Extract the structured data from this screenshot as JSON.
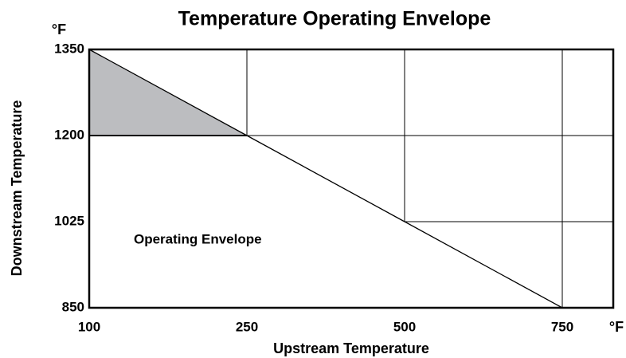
{
  "chart_data": {
    "type": "line",
    "title": "Temperature Operating Envelope",
    "xlabel": "Upstream  Temperature",
    "ylabel": "Downstream  Temperature",
    "x_unit": "°F",
    "y_unit": "°F",
    "annotation": "Operating Envelope",
    "x": [
      100,
      250,
      500,
      750
    ],
    "y": [
      1350,
      1200,
      1025,
      850
    ],
    "xticks": [
      100,
      250,
      500,
      750
    ],
    "yticks": [
      850,
      1025,
      1200,
      1350
    ],
    "color": "#000000",
    "shade_color": "#bcbdc0",
    "grid": true
  }
}
